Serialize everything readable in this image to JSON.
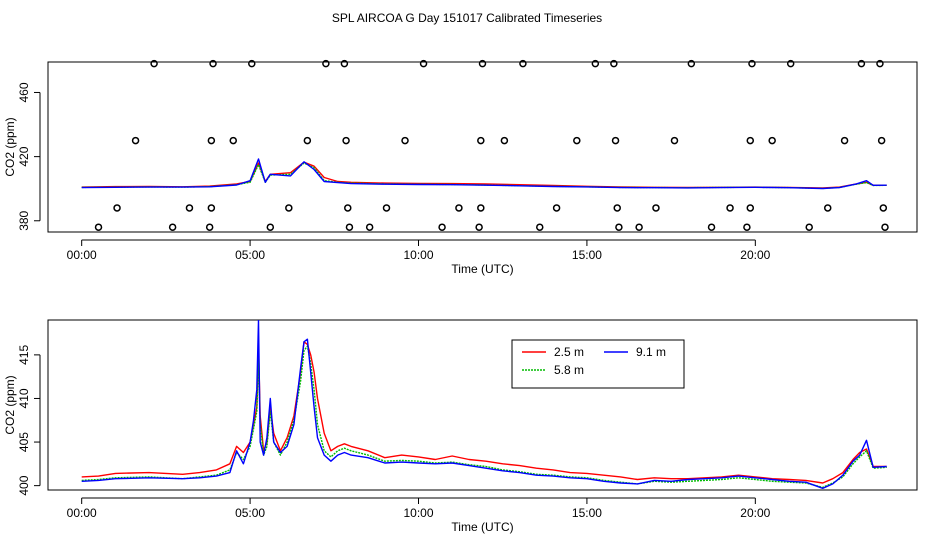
{
  "title": "SPL AIRCOA G  Day 151017  Calibrated Timeseries",
  "chart_data": [
    {
      "type": "scatter",
      "xlabel": "Time (UTC)",
      "ylabel": "CO2 (ppm)",
      "xlim": [
        -1,
        24.8
      ],
      "ylim": [
        373,
        479
      ],
      "x_ticks": [
        0,
        5,
        10,
        15,
        20
      ],
      "x_tick_labels": [
        "00:00",
        "05:00",
        "10:00",
        "15:00",
        "20:00"
      ],
      "y_ticks": [
        380,
        420,
        460
      ],
      "y_tick_labels": [
        "380",
        "420",
        "460"
      ],
      "calibration_points": [
        {
          "level": 478,
          "x": [
            2.15,
            3.9,
            5.05,
            7.25,
            7.8,
            10.15,
            11.9,
            13.1,
            15.25,
            15.8,
            18.1,
            19.9,
            21.05,
            23.15,
            23.7
          ]
        },
        {
          "level": 430,
          "x": [
            1.6,
            3.85,
            4.5,
            6.7,
            7.85,
            9.6,
            11.85,
            12.55,
            14.7,
            15.85,
            17.6,
            19.85,
            20.5,
            22.65,
            23.75
          ]
        },
        {
          "level": 388,
          "x": [
            1.05,
            3.2,
            3.85,
            6.15,
            7.9,
            9.05,
            11.2,
            11.85,
            14.1,
            15.9,
            17.05,
            19.25,
            19.85,
            22.15,
            23.8
          ]
        },
        {
          "level": 376,
          "x": [
            0.5,
            2.7,
            3.8,
            5.6,
            7.95,
            8.55,
            10.7,
            11.8,
            13.6,
            15.95,
            16.55,
            18.7,
            19.75,
            21.6,
            23.85
          ]
        }
      ],
      "series": [
        {
          "name": "2.5 m",
          "color": "#ff0000",
          "x": [
            0,
            1,
            2,
            3,
            3.8,
            4.6,
            5.0,
            5.25,
            5.45,
            5.6,
            6.2,
            6.6,
            6.9,
            7.2,
            7.6,
            8.0,
            9.0,
            10.0,
            11.0,
            12.0,
            13.0,
            14.0,
            15.0,
            16.0,
            17.0,
            18.0,
            19.0,
            20.0,
            21.0,
            22.0,
            22.5,
            23.0,
            23.3,
            23.5,
            23.9
          ],
          "values": [
            401,
            401.3,
            401.4,
            401.2,
            401.6,
            403,
            404.5,
            416,
            404.5,
            409,
            410,
            416.5,
            414,
            407,
            404.5,
            404,
            403.5,
            403.3,
            403.2,
            403,
            402.5,
            402,
            401.5,
            401.1,
            400.9,
            400.8,
            400.9,
            401,
            400.8,
            400.5,
            401,
            403,
            404,
            402.2,
            402.2
          ]
        },
        {
          "name": "5.8 m",
          "color": "#00bb00",
          "x": [
            0,
            1,
            2,
            3,
            3.8,
            4.6,
            5.0,
            5.25,
            5.45,
            5.6,
            6.2,
            6.6,
            6.9,
            7.2,
            7.6,
            8.0,
            9.0,
            10.0,
            11.0,
            12.0,
            13.0,
            14.0,
            15.0,
            16.0,
            17.0,
            18.0,
            19.0,
            20.0,
            21.0,
            22.0,
            22.5,
            23.0,
            23.3,
            23.5,
            23.9
          ],
          "values": [
            400.8,
            401.0,
            401.1,
            401.0,
            401.3,
            402.5,
            404,
            415,
            404,
            408.5,
            409,
            416,
            413,
            405,
            404,
            403.5,
            403,
            402.8,
            402.6,
            402.3,
            401.9,
            401.5,
            401.2,
            400.8,
            400.7,
            400.6,
            400.8,
            400.9,
            400.7,
            400.2,
            400.8,
            402.8,
            403.8,
            402,
            402.1
          ]
        },
        {
          "name": "9.1 m",
          "color": "#0000ff",
          "x": [
            0,
            1,
            2,
            3,
            3.8,
            4.6,
            5.0,
            5.25,
            5.45,
            5.6,
            6.2,
            6.6,
            6.9,
            7.2,
            7.6,
            8.0,
            9.0,
            10.0,
            11.0,
            12.0,
            13.0,
            14.0,
            15.0,
            16.0,
            17.0,
            18.0,
            19.0,
            20.0,
            21.0,
            22.0,
            22.5,
            23.0,
            23.3,
            23.5,
            23.9
          ],
          "values": [
            400.7,
            400.9,
            401.0,
            401.0,
            401.2,
            402.3,
            405,
            418.5,
            404,
            409,
            408,
            416.8,
            412,
            404.5,
            403.8,
            403.2,
            402.8,
            402.6,
            402.5,
            402.2,
            401.8,
            401.4,
            401.1,
            400.7,
            400.6,
            400.5,
            400.7,
            400.9,
            400.6,
            400.1,
            400.7,
            403,
            405,
            402.1,
            402.2
          ]
        }
      ]
    },
    {
      "type": "line",
      "xlabel": "Time (UTC)",
      "ylabel": "CO2 (ppm)",
      "xlim": [
        -1,
        24.8
      ],
      "ylim": [
        399.5,
        419
      ],
      "x_ticks": [
        0,
        5,
        10,
        15,
        20
      ],
      "x_tick_labels": [
        "00:00",
        "05:00",
        "10:00",
        "15:00",
        "20:00"
      ],
      "y_ticks": [
        400,
        405,
        410,
        415
      ],
      "y_tick_labels": [
        "400",
        "405",
        "410",
        "415"
      ],
      "legend": {
        "position": "top-center",
        "entries": [
          "2.5 m",
          "5.8 m",
          "9.1 m"
        ]
      },
      "series": [
        {
          "name": "2.5 m",
          "color": "#ff0000",
          "x": [
            0,
            0.5,
            1,
            2,
            3,
            3.5,
            4.0,
            4.4,
            4.6,
            4.8,
            5.0,
            5.1,
            5.2,
            5.25,
            5.3,
            5.4,
            5.5,
            5.6,
            5.7,
            5.9,
            6.1,
            6.3,
            6.5,
            6.6,
            6.7,
            6.8,
            6.9,
            7.0,
            7.2,
            7.4,
            7.6,
            7.8,
            8.0,
            8.5,
            9.0,
            9.5,
            10.0,
            10.5,
            11.0,
            11.5,
            12.0,
            12.5,
            13.0,
            13.5,
            14.0,
            14.5,
            15.0,
            15.5,
            16.0,
            16.5,
            17.0,
            17.5,
            18.0,
            18.5,
            19.0,
            19.5,
            20.0,
            20.5,
            21.0,
            21.5,
            22.0,
            22.3,
            22.6,
            22.9,
            23.1,
            23.3,
            23.5,
            23.9
          ],
          "values": [
            401,
            401.1,
            401.4,
            401.5,
            401.3,
            401.5,
            401.8,
            402.5,
            404.5,
            403.8,
            405,
            407,
            409,
            416,
            408,
            404,
            405,
            409,
            406,
            404,
            405.5,
            408,
            413,
            416.5,
            416.2,
            415,
            413,
            410,
            406,
            404,
            404.5,
            404.8,
            404.5,
            404,
            403.2,
            403.5,
            403.3,
            403.0,
            403.4,
            403.0,
            402.8,
            402.5,
            402.3,
            402.0,
            401.8,
            401.5,
            401.4,
            401.2,
            401.0,
            400.7,
            400.9,
            400.8,
            400.8,
            400.9,
            401.0,
            401.2,
            401.0,
            400.8,
            400.7,
            400.6,
            400.3,
            400.8,
            401.5,
            403,
            403.8,
            404.2,
            402.2,
            402.2
          ]
        },
        {
          "name": "5.8 m",
          "color": "#00bb00",
          "x": [
            0,
            0.5,
            1,
            2,
            3,
            3.5,
            4.0,
            4.4,
            4.6,
            4.8,
            5.0,
            5.1,
            5.2,
            5.25,
            5.3,
            5.4,
            5.5,
            5.6,
            5.7,
            5.9,
            6.1,
            6.3,
            6.5,
            6.6,
            6.7,
            6.8,
            6.9,
            7.0,
            7.2,
            7.4,
            7.6,
            7.8,
            8.0,
            8.5,
            9.0,
            9.5,
            10.0,
            10.5,
            11.0,
            11.5,
            12.0,
            12.5,
            13.0,
            13.5,
            14.0,
            14.5,
            15.0,
            15.5,
            16.0,
            16.5,
            17.0,
            17.5,
            18.0,
            18.5,
            19.0,
            19.5,
            20.0,
            20.5,
            21.0,
            21.5,
            22.0,
            22.3,
            22.6,
            22.9,
            23.1,
            23.3,
            23.5,
            23.9
          ],
          "values": [
            400.6,
            400.7,
            400.9,
            401.0,
            400.8,
            401.0,
            401.2,
            401.8,
            403.8,
            403.0,
            404.5,
            406.5,
            408.5,
            414.5,
            407,
            403.5,
            404.5,
            408.5,
            405,
            403.5,
            405,
            407.5,
            412,
            415.5,
            416,
            414,
            411,
            407,
            404,
            403.3,
            404.0,
            404.3,
            404.0,
            403.5,
            402.8,
            402.9,
            402.8,
            402.6,
            402.7,
            402.4,
            402.2,
            401.8,
            401.6,
            401.3,
            401.2,
            401.0,
            400.9,
            400.6,
            400.4,
            400.2,
            400.5,
            400.4,
            400.5,
            400.6,
            400.7,
            400.9,
            400.7,
            400.5,
            400.4,
            400.3,
            399.8,
            400.3,
            401.0,
            402.5,
            403.3,
            404.0,
            402.0,
            402.1
          ]
        },
        {
          "name": "9.1 m",
          "color": "#0000ff",
          "x": [
            0,
            0.5,
            1,
            2,
            3,
            3.5,
            4.0,
            4.4,
            4.6,
            4.8,
            5.0,
            5.1,
            5.2,
            5.25,
            5.3,
            5.4,
            5.5,
            5.6,
            5.7,
            5.9,
            6.1,
            6.3,
            6.5,
            6.6,
            6.7,
            6.8,
            6.9,
            7.0,
            7.2,
            7.4,
            7.6,
            7.8,
            8.0,
            8.5,
            9.0,
            9.5,
            10.0,
            10.5,
            11.0,
            11.5,
            12.0,
            12.5,
            13.0,
            13.5,
            14.0,
            14.5,
            15.0,
            15.5,
            16.0,
            16.5,
            17.0,
            17.5,
            18.0,
            18.5,
            19.0,
            19.5,
            20.0,
            20.5,
            21.0,
            21.5,
            22.0,
            22.3,
            22.6,
            22.9,
            23.1,
            23.3,
            23.5,
            23.9
          ],
          "values": [
            400.5,
            400.6,
            400.8,
            400.9,
            400.8,
            400.9,
            401.1,
            401.5,
            404,
            402.5,
            405,
            407.5,
            411,
            419,
            405,
            403.5,
            405.5,
            410,
            405,
            403.8,
            404.5,
            407,
            413.5,
            416.5,
            416.8,
            413,
            409,
            405.5,
            403.5,
            402.8,
            403.5,
            403.8,
            403.5,
            403.2,
            402.6,
            402.7,
            402.6,
            402.5,
            402.6,
            402.3,
            402.0,
            401.7,
            401.5,
            401.2,
            401.1,
            400.9,
            400.8,
            400.5,
            400.3,
            400.2,
            400.6,
            400.5,
            400.7,
            400.8,
            400.9,
            401.1,
            400.9,
            400.7,
            400.5,
            400.4,
            399.7,
            400.2,
            401.2,
            402.8,
            403.5,
            405.2,
            402.1,
            402.2
          ]
        }
      ]
    }
  ]
}
